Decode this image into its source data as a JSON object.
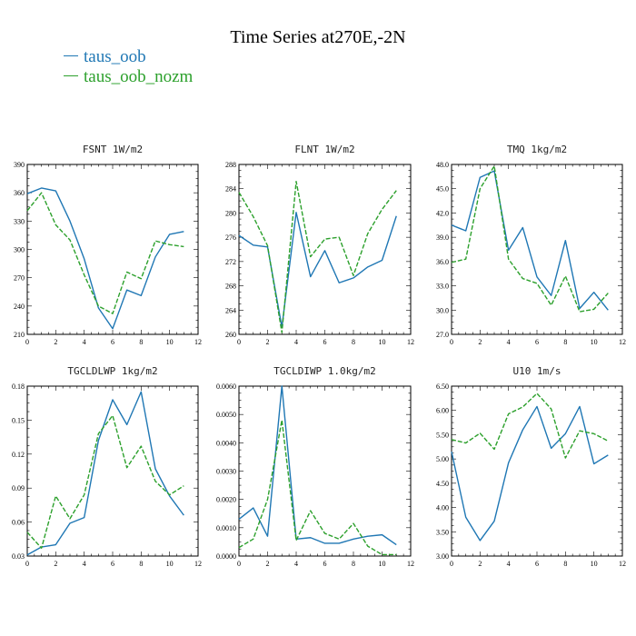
{
  "figure": {
    "title": "Time Series at270E,-2N",
    "legend": [
      {
        "name": "taus_oob",
        "color": "#1f77b4",
        "style": "solid"
      },
      {
        "name": "taus_oob_nozm",
        "color": "#2ca02c",
        "style": "dashed"
      }
    ]
  },
  "chart_data": [
    {
      "type": "line",
      "title": "FSNT  1W/m2",
      "xlim": [
        0,
        12
      ],
      "xticks": [
        0,
        2,
        4,
        6,
        8,
        10,
        12
      ],
      "ylim": [
        210,
        390
      ],
      "yticks": [
        210,
        240,
        270,
        300,
        330,
        360,
        390
      ],
      "ytick_labels": [
        "210",
        "240",
        "270",
        "300",
        "330",
        "360",
        "390"
      ],
      "x": [
        0,
        1,
        2,
        3,
        4,
        5,
        6,
        7,
        8,
        9,
        10,
        11
      ],
      "series": [
        {
          "name": "taus_oob",
          "values": [
            359,
            365,
            362,
            330,
            290,
            238,
            216,
            257,
            251,
            292,
            316,
            319
          ]
        },
        {
          "name": "taus_oob_nozm",
          "values": [
            341,
            360,
            326,
            310,
            273,
            240,
            232,
            276,
            269,
            309,
            305,
            303
          ]
        }
      ]
    },
    {
      "type": "line",
      "title": "FLNT  1W/m2",
      "xlim": [
        0,
        12
      ],
      "xticks": [
        0,
        2,
        4,
        6,
        8,
        10,
        12
      ],
      "ylim": [
        260,
        288
      ],
      "yticks": [
        260,
        264,
        268,
        272,
        276,
        280,
        284,
        288
      ],
      "ytick_labels": [
        "260",
        "264",
        "268",
        "272",
        "276",
        "280",
        "284",
        "288"
      ],
      "x": [
        0,
        1,
        2,
        3,
        4,
        5,
        6,
        7,
        8,
        9,
        10,
        11
      ],
      "series": [
        {
          "name": "taus_oob",
          "values": [
            276.3,
            274.7,
            274.4,
            261.2,
            280.1,
            269.5,
            273.8,
            268.5,
            269.3,
            271.1,
            272.2,
            279.5
          ]
        },
        {
          "name": "taus_oob_nozm",
          "values": [
            283.4,
            279.4,
            274.6,
            260.3,
            285.2,
            272.8,
            275.7,
            276.0,
            269.7,
            276.6,
            280.6,
            283.7
          ]
        }
      ]
    },
    {
      "type": "line",
      "title": "TMQ  1kg/m2",
      "xlim": [
        0,
        12
      ],
      "xticks": [
        0,
        2,
        4,
        6,
        8,
        10,
        12
      ],
      "ylim": [
        27.0,
        48.0
      ],
      "yticks": [
        27,
        30,
        33,
        36,
        39,
        42,
        45,
        48
      ],
      "ytick_labels": [
        "27.0",
        "30.0",
        "33.0",
        "36.0",
        "39.0",
        "42.0",
        "45.0",
        "48.0"
      ],
      "x": [
        0,
        1,
        2,
        3,
        4,
        5,
        6,
        7,
        8,
        9,
        10,
        11
      ],
      "series": [
        {
          "name": "taus_oob",
          "values": [
            40.5,
            39.8,
            46.4,
            47.2,
            37.4,
            40.2,
            34.1,
            31.8,
            38.6,
            30.2,
            32.2,
            30.0
          ]
        },
        {
          "name": "taus_oob_nozm",
          "values": [
            35.9,
            36.3,
            45.0,
            47.8,
            36.3,
            33.9,
            33.3,
            30.6,
            34.2,
            29.8,
            30.1,
            32.1
          ]
        }
      ]
    },
    {
      "type": "line",
      "title": "TGCLDLWP  1kg/m2",
      "xlim": [
        0,
        12
      ],
      "xticks": [
        0,
        2,
        4,
        6,
        8,
        10,
        12
      ],
      "ylim": [
        0.03,
        0.18
      ],
      "yticks": [
        0.03,
        0.06,
        0.09,
        0.12,
        0.15,
        0.18
      ],
      "ytick_labels": [
        "0.03",
        "0.06",
        "0.09",
        "0.12",
        "0.15",
        "0.18"
      ],
      "x": [
        0,
        1,
        2,
        3,
        4,
        5,
        6,
        7,
        8,
        9,
        10,
        11
      ],
      "series": [
        {
          "name": "taus_oob",
          "values": [
            0.031,
            0.038,
            0.04,
            0.059,
            0.064,
            0.132,
            0.168,
            0.146,
            0.175,
            0.107,
            0.083,
            0.066
          ]
        },
        {
          "name": "taus_oob_nozm",
          "values": [
            0.051,
            0.037,
            0.083,
            0.063,
            0.084,
            0.138,
            0.154,
            0.108,
            0.127,
            0.096,
            0.084,
            0.092
          ]
        }
      ]
    },
    {
      "type": "line",
      "title": "TGCLDIWP  1.0kg/m2",
      "xlim": [
        0,
        12
      ],
      "xticks": [
        0,
        2,
        4,
        6,
        8,
        10,
        12
      ],
      "ylim": [
        0,
        0.006
      ],
      "yticks": [
        0,
        0.001,
        0.002,
        0.003,
        0.004,
        0.005,
        0.006
      ],
      "ytick_labels": [
        "0.0000",
        "0.0010",
        "0.0020",
        "0.0030",
        "0.0040",
        "0.0050",
        "0.0060"
      ],
      "x": [
        0,
        1,
        2,
        3,
        4,
        5,
        6,
        7,
        8,
        9,
        10,
        11
      ],
      "series": [
        {
          "name": "taus_oob",
          "values": [
            0.0013,
            0.0017,
            0.0007,
            0.006,
            0.0006,
            0.00065,
            0.00045,
            0.00045,
            0.0006,
            0.0007,
            0.00075,
            0.0004
          ]
        },
        {
          "name": "taus_oob_nozm",
          "values": [
            0.0003,
            0.0006,
            0.002,
            0.0048,
            0.00055,
            0.0016,
            0.0008,
            0.0006,
            0.00115,
            0.00035,
            5e-05,
            5e-05
          ]
        }
      ]
    },
    {
      "type": "line",
      "title": "U10  1m/s",
      "xlim": [
        0,
        12
      ],
      "xticks": [
        0,
        2,
        4,
        6,
        8,
        10,
        12
      ],
      "ylim": [
        3.0,
        6.5
      ],
      "yticks": [
        3.0,
        3.5,
        4.0,
        4.5,
        5.0,
        5.5,
        6.0,
        6.5
      ],
      "ytick_labels": [
        "3.00",
        "3.50",
        "4.00",
        "4.50",
        "5.00",
        "5.50",
        "6.00",
        "6.50"
      ],
      "x": [
        0,
        1,
        2,
        3,
        4,
        5,
        6,
        7,
        8,
        9,
        10,
        11
      ],
      "series": [
        {
          "name": "taus_oob",
          "values": [
            5.15,
            3.8,
            3.32,
            3.72,
            4.92,
            5.6,
            6.08,
            5.22,
            5.52,
            6.08,
            4.9,
            5.08
          ]
        },
        {
          "name": "taus_oob_nozm",
          "values": [
            5.4,
            5.33,
            5.53,
            5.2,
            5.93,
            6.07,
            6.35,
            6.03,
            5.02,
            5.58,
            5.52,
            5.37
          ]
        }
      ]
    }
  ]
}
